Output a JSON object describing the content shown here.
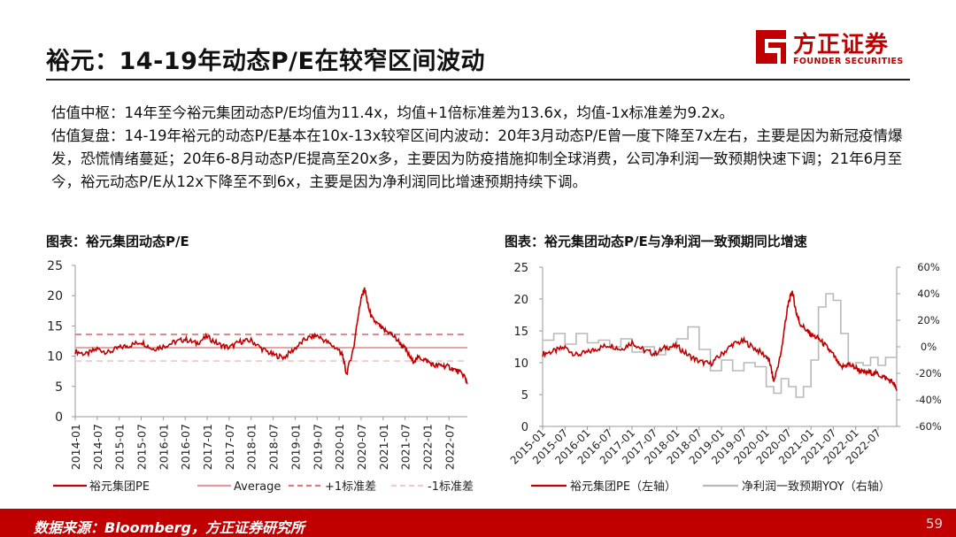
{
  "slide": {
    "title": "裕元：14-19年动态P/E在较窄区间波动",
    "page_number": "59",
    "source": "数据来源：Bloomberg，方正证券研究所"
  },
  "logo": {
    "name_cn": "方正证券",
    "name_en": "FOUNDER SECURITIES",
    "color": "#c00000"
  },
  "body": {
    "para1": "估值中枢：14年至今裕元集团动态P/E均值为11.4x，均值+1倍标准差为13.6x，均值-1x标准差为9.2x。",
    "para2": "估值复盘：14-19年裕元的动态P/E基本在10x-13x较窄区间内波动：20年3月动态P/E曾一度下降至7x左右，主要是因为新冠疫情爆发，恐慌情绪蔓延；20年6-8月动态P/E提高至20x多，主要因为防疫措施抑制全球消费，公司净利润一致预期快速下调；21年6月至今，裕元动态P/E从12x下降至不到6x，主要是因为净利润同比增速预期持续下调。"
  },
  "chart_data": [
    {
      "id": "left",
      "type": "line",
      "title": "图表：裕元集团动态P/E",
      "x_labels": [
        "2014-01",
        "2014-07",
        "2015-01",
        "2015-07",
        "2016-01",
        "2016-07",
        "2017-01",
        "2017-07",
        "2018-01",
        "2018-07",
        "2019-01",
        "2019-07",
        "2020-01",
        "2020-07",
        "2021-01",
        "2021-07",
        "2022-01",
        "2022-07"
      ],
      "y_ticks": [
        "0",
        "5",
        "10",
        "15",
        "20",
        "25"
      ],
      "ylim": [
        0,
        25
      ],
      "x_range": [
        "2014-01",
        "2022-12"
      ],
      "series": [
        {
          "name": "裕元集团PE",
          "color": "#c00000",
          "style": "solid",
          "x": [
            "2014-01",
            "2014-04",
            "2014-07",
            "2014-10",
            "2015-01",
            "2015-04",
            "2015-07",
            "2015-10",
            "2016-01",
            "2016-04",
            "2016-07",
            "2016-10",
            "2017-01",
            "2017-04",
            "2017-07",
            "2017-10",
            "2018-01",
            "2018-04",
            "2018-07",
            "2018-10",
            "2019-01",
            "2019-04",
            "2019-07",
            "2019-10",
            "2020-01",
            "2020-02",
            "2020-03",
            "2020-05",
            "2020-06",
            "2020-07",
            "2020-08",
            "2020-09",
            "2020-10",
            "2020-12",
            "2021-01",
            "2021-03",
            "2021-05",
            "2021-07",
            "2021-09",
            "2021-11",
            "2022-01",
            "2022-03",
            "2022-05",
            "2022-07",
            "2022-09",
            "2022-11",
            "2022-12"
          ],
          "y": [
            10.8,
            10.3,
            11.2,
            10.6,
            11.4,
            11.8,
            12.4,
            11.2,
            11.6,
            12.3,
            12.8,
            12.1,
            13.2,
            12.0,
            11.4,
            12.4,
            12.6,
            11.2,
            10.2,
            9.8,
            11.3,
            12.9,
            13.4,
            12.2,
            11.0,
            10.0,
            7.0,
            11.5,
            16.0,
            19.5,
            21.2,
            18.0,
            16.2,
            15.0,
            14.4,
            13.8,
            12.6,
            11.2,
            9.2,
            9.8,
            9.2,
            8.4,
            8.5,
            8.2,
            7.6,
            6.9,
            5.6
          ]
        },
        {
          "name": "Average",
          "color": "#e39a9a",
          "style": "solid",
          "value": 11.4
        },
        {
          "name": "+1标准差",
          "color": "#e07a7a",
          "style": "dashed",
          "value": 13.6
        },
        {
          "name": "-1标准差",
          "color": "#f2cccc",
          "style": "dashed",
          "value": 9.2
        }
      ]
    },
    {
      "id": "right",
      "type": "line",
      "title": "图表：裕元集团动态P/E与净利润一致预期同比增速",
      "x_labels": [
        "2015-01",
        "2015-07",
        "2016-01",
        "2016-07",
        "2017-01",
        "2017-07",
        "2018-01",
        "2018-07",
        "2019-01",
        "2019-07",
        "2020-01",
        "2020-07",
        "2021-01",
        "2021-07",
        "2022-01",
        "2022-07"
      ],
      "y_ticks_left": [
        "0",
        "5",
        "10",
        "15",
        "20",
        "25"
      ],
      "y_ticks_right": [
        "-60%",
        "-40%",
        "-20%",
        "0%",
        "20%",
        "40%",
        "60%"
      ],
      "ylim_left": [
        0,
        25
      ],
      "ylim_right": [
        -60,
        60
      ],
      "x_range": [
        "2015-01",
        "2022-12"
      ],
      "series": [
        {
          "name": "裕元集团PE（左轴）",
          "color": "#c00000",
          "axis": "left",
          "x": [
            "2015-01",
            "2015-04",
            "2015-07",
            "2015-10",
            "2016-01",
            "2016-04",
            "2016-07",
            "2016-10",
            "2017-01",
            "2017-04",
            "2017-07",
            "2017-10",
            "2018-01",
            "2018-04",
            "2018-07",
            "2018-10",
            "2019-01",
            "2019-04",
            "2019-07",
            "2019-10",
            "2020-01",
            "2020-02",
            "2020-03",
            "2020-05",
            "2020-06",
            "2020-07",
            "2020-08",
            "2020-09",
            "2020-10",
            "2020-12",
            "2021-01",
            "2021-03",
            "2021-05",
            "2021-07",
            "2021-09",
            "2021-11",
            "2022-01",
            "2022-03",
            "2022-05",
            "2022-07",
            "2022-09",
            "2022-11",
            "2022-12"
          ],
          "y": [
            11.4,
            11.8,
            12.4,
            11.2,
            11.6,
            12.3,
            12.8,
            12.1,
            13.2,
            12.0,
            11.4,
            12.4,
            12.6,
            11.2,
            10.2,
            9.8,
            11.3,
            12.9,
            13.4,
            12.2,
            11.0,
            10.0,
            7.0,
            11.5,
            16.0,
            19.5,
            21.2,
            18.0,
            16.2,
            15.0,
            14.4,
            13.8,
            12.6,
            11.2,
            9.2,
            9.8,
            9.2,
            8.4,
            8.5,
            8.2,
            7.6,
            6.9,
            5.6
          ]
        },
        {
          "name": "净利润一致预期YOY（右轴）",
          "color": "#b8b8b8",
          "axis": "right",
          "x": [
            "2015-01",
            "2015-04",
            "2015-07",
            "2015-10",
            "2016-01",
            "2016-04",
            "2016-07",
            "2016-10",
            "2017-01",
            "2017-04",
            "2017-07",
            "2017-10",
            "2018-01",
            "2018-04",
            "2018-07",
            "2018-10",
            "2019-01",
            "2019-04",
            "2019-07",
            "2019-10",
            "2020-01",
            "2020-03",
            "2020-05",
            "2020-07",
            "2020-09",
            "2020-11",
            "2021-01",
            "2021-03",
            "2021-05",
            "2021-07",
            "2021-09",
            "2021-11",
            "2022-01",
            "2022-03",
            "2022-05",
            "2022-07",
            "2022-09",
            "2022-12"
          ],
          "y": [
            5,
            10,
            2,
            10,
            3,
            5,
            0,
            6,
            -4,
            0,
            -6,
            0,
            6,
            15,
            -2,
            -18,
            -10,
            -18,
            -12,
            -15,
            -30,
            -35,
            -24,
            -30,
            -38,
            -30,
            -10,
            30,
            40,
            35,
            10,
            -15,
            -12,
            -14,
            -8,
            -14,
            -8,
            0
          ]
        }
      ]
    }
  ]
}
